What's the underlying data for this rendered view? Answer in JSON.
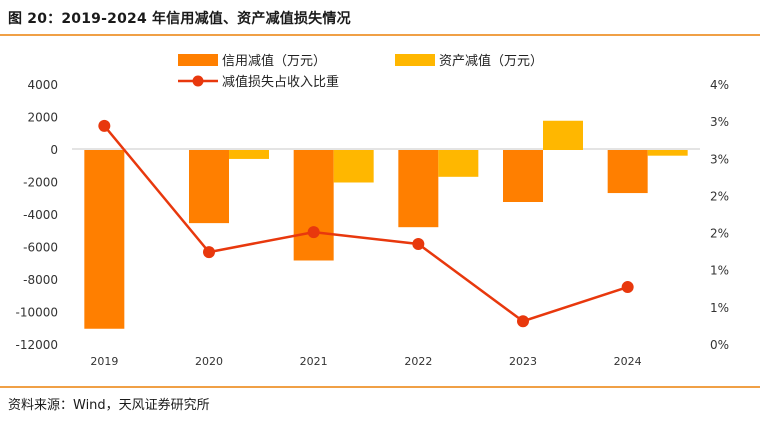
{
  "header": {
    "title": "图 20：2019-2024 年信用减值、资产减值损失情况"
  },
  "footer": {
    "source": "资料来源：Wind，天风证券研究所"
  },
  "colors": {
    "credit_bar": "#ff7f00",
    "asset_bar": "#ffb700",
    "ratio_line": "#e8380d",
    "rule": "#f0a046"
  },
  "chart_data": {
    "type": "bar",
    "categories": [
      "2019",
      "2020",
      "2021",
      "2022",
      "2023",
      "2024"
    ],
    "series": [
      {
        "name": "信用减值（万元）",
        "type": "bar",
        "axis": "left",
        "values": [
          -11000,
          -4500,
          -6800,
          -4750,
          -3200,
          -2650
        ]
      },
      {
        "name": "资产减值（万元）",
        "type": "bar",
        "axis": "left",
        "values": [
          0,
          -550,
          -2000,
          -1650,
          1800,
          -350
        ]
      },
      {
        "name": "减值损失占收入比重",
        "type": "line",
        "axis": "right",
        "values": [
          2.95,
          1.25,
          1.52,
          1.36,
          0.32,
          0.78
        ]
      }
    ],
    "y_left": {
      "ylim": [
        -12000,
        4000
      ],
      "ticks": [
        "4000",
        "2000",
        "0",
        "-2000",
        "-4000",
        "-6000",
        "-8000",
        "-10000",
        "-12000"
      ]
    },
    "y_right": {
      "ylim": [
        0,
        3.5
      ],
      "ticks": [
        "4%",
        "3%",
        "3%",
        "2%",
        "2%",
        "1%",
        "1%",
        "0%"
      ]
    },
    "legend": "top",
    "grid": false
  }
}
